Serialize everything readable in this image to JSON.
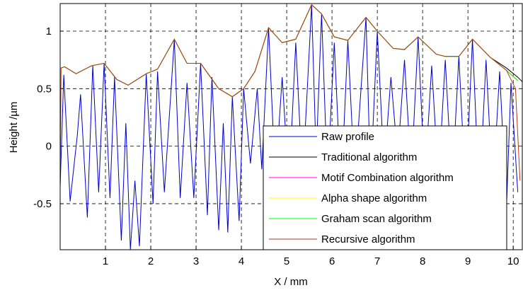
{
  "chart_data": {
    "type": "line",
    "xlabel": "X / mm",
    "ylabel": "Height /µm",
    "xlim": [
      0,
      10.2
    ],
    "ylim": [
      -0.9,
      1.24
    ],
    "xticks": [
      1,
      2,
      3,
      4,
      5,
      6,
      7,
      8,
      9,
      10
    ],
    "yticks": [
      -0.5,
      0,
      0.5,
      1
    ],
    "grid": true,
    "legend": "lower right",
    "series": [
      {
        "name": "Raw profile",
        "color": "#0000cc",
        "x": [
          0.0,
          0.08,
          0.22,
          0.38,
          0.45,
          0.6,
          0.72,
          0.85,
          0.97,
          1.1,
          1.2,
          1.35,
          1.45,
          1.55,
          1.65,
          1.75,
          1.9,
          2.05,
          2.15,
          2.3,
          2.52,
          2.65,
          2.8,
          2.95,
          3.1,
          3.25,
          3.35,
          3.5,
          3.6,
          3.7,
          3.8,
          3.95,
          4.05,
          4.2,
          4.35,
          4.45,
          4.6,
          4.75,
          4.9,
          5.05,
          5.2,
          5.35,
          5.55,
          5.65,
          5.77,
          5.9,
          6.05,
          6.2,
          6.35,
          6.5,
          6.75,
          6.85,
          7.0,
          7.15,
          7.3,
          7.45,
          7.6,
          7.75,
          7.9,
          8.05,
          8.2,
          8.35,
          8.5,
          8.65,
          8.8,
          8.95,
          9.1,
          9.25,
          9.4,
          9.55,
          9.7,
          9.85,
          9.95,
          10.1
        ],
        "values": [
          -0.35,
          0.62,
          -0.48,
          0.1,
          0.45,
          -0.62,
          0.7,
          -0.4,
          0.72,
          -0.45,
          0.6,
          -0.82,
          0.2,
          -0.9,
          -0.3,
          -0.87,
          0.63,
          -0.5,
          0.65,
          -0.4,
          0.93,
          -0.45,
          0.55,
          -0.45,
          0.72,
          -0.6,
          0.6,
          -0.73,
          0.2,
          -0.75,
          0.43,
          -0.65,
          0.5,
          -0.15,
          0.5,
          -0.2,
          1.03,
          -0.3,
          0.6,
          -0.35,
          0.9,
          -0.3,
          1.23,
          -0.1,
          1.15,
          -0.3,
          0.9,
          -0.4,
          0.92,
          -0.3,
          1.12,
          -0.3,
          1.0,
          -0.2,
          0.6,
          -0.1,
          0.75,
          -0.25,
          0.95,
          -0.3,
          0.7,
          -0.3,
          0.75,
          -0.35,
          0.78,
          -0.4,
          0.93,
          -0.45,
          0.75,
          -0.4,
          0.65,
          -0.55,
          0.55,
          -0.4
        ]
      },
      {
        "name": "Traditional algorithm",
        "color": "#000000",
        "x": [
          0.02,
          0.1,
          0.35,
          0.7,
          0.97,
          1.25,
          1.5,
          1.9,
          2.15,
          2.52,
          2.8,
          3.1,
          3.5,
          3.8,
          4.05,
          4.3,
          4.6,
          4.9,
          5.2,
          5.55,
          5.77,
          6.05,
          6.35,
          6.75,
          7.0,
          7.35,
          7.6,
          7.9,
          8.3,
          8.5,
          8.8,
          9.1,
          9.5,
          9.85,
          10.1,
          10.2
        ],
        "values": [
          0.68,
          0.69,
          0.63,
          0.7,
          0.72,
          0.58,
          0.53,
          0.63,
          0.67,
          0.93,
          0.72,
          0.72,
          0.5,
          0.43,
          0.5,
          0.65,
          1.03,
          0.9,
          0.93,
          1.23,
          1.15,
          0.95,
          0.92,
          1.12,
          1.0,
          0.85,
          0.84,
          0.95,
          0.8,
          0.78,
          0.78,
          0.93,
          0.77,
          0.68,
          0.6,
          0.56
        ]
      },
      {
        "name": "Motif Combination algorithm",
        "color": "#ff00ff",
        "x": [
          0.02,
          0.1,
          0.35,
          0.7,
          0.97,
          1.25,
          1.5,
          1.9,
          2.15,
          2.52,
          2.8,
          3.1,
          3.5,
          3.8,
          4.05,
          4.3,
          4.6,
          4.9,
          5.2,
          5.55,
          5.77,
          6.05,
          6.35,
          6.75,
          7.0,
          7.35,
          7.6,
          7.9,
          8.3,
          8.5,
          8.8,
          9.1,
          9.5,
          9.85,
          10.1
        ],
        "values": [
          0.68,
          0.69,
          0.63,
          0.7,
          0.72,
          0.58,
          0.53,
          0.63,
          0.67,
          0.93,
          0.72,
          0.72,
          0.5,
          0.43,
          0.5,
          0.65,
          1.03,
          0.9,
          0.93,
          1.23,
          1.15,
          0.95,
          0.92,
          1.12,
          1.0,
          0.85,
          0.84,
          0.95,
          0.8,
          0.78,
          0.78,
          0.93,
          0.77,
          0.66,
          0.57
        ]
      },
      {
        "name": "Alpha shape algorithm",
        "color": "#ffff00",
        "x": [
          0.02,
          0.1,
          0.35,
          0.7,
          0.97,
          1.25,
          1.5,
          1.9,
          2.15,
          2.52,
          2.8,
          3.1,
          3.5,
          3.8,
          4.05,
          4.3,
          4.6,
          4.9,
          5.2,
          5.55,
          5.77,
          6.05,
          6.35,
          6.75,
          7.0,
          7.35,
          7.6,
          7.9,
          8.3,
          8.5,
          8.8,
          9.1,
          9.5,
          9.85,
          10.1
        ],
        "values": [
          0.68,
          0.69,
          0.63,
          0.7,
          0.72,
          0.58,
          0.53,
          0.63,
          0.67,
          0.93,
          0.72,
          0.72,
          0.5,
          0.43,
          0.5,
          0.65,
          1.03,
          0.9,
          0.93,
          1.23,
          1.15,
          0.95,
          0.92,
          1.12,
          1.0,
          0.85,
          0.84,
          0.95,
          0.8,
          0.78,
          0.78,
          0.93,
          0.77,
          0.66,
          0.57
        ]
      },
      {
        "name": "Graham scan algorithm",
        "color": "#00ff00",
        "x": [
          0.02,
          0.1,
          0.35,
          0.7,
          0.97,
          1.25,
          1.5,
          1.9,
          2.15,
          2.52,
          2.8,
          3.1,
          3.5,
          3.8,
          4.05,
          4.3,
          4.6,
          4.9,
          5.2,
          5.55,
          5.77,
          6.05,
          6.35,
          6.75,
          7.0,
          7.35,
          7.6,
          7.9,
          8.3,
          8.5,
          8.8,
          9.1,
          9.5,
          9.85,
          10.1
        ],
        "values": [
          0.68,
          0.69,
          0.63,
          0.7,
          0.72,
          0.58,
          0.53,
          0.63,
          0.67,
          0.93,
          0.72,
          0.72,
          0.5,
          0.43,
          0.5,
          0.65,
          1.03,
          0.9,
          0.93,
          1.23,
          1.15,
          0.95,
          0.92,
          1.12,
          1.0,
          0.85,
          0.84,
          0.95,
          0.8,
          0.78,
          0.78,
          0.93,
          0.77,
          0.66,
          0.57
        ]
      },
      {
        "name": "Recursive algorithm",
        "color": "#b5371c",
        "x": [
          0.0,
          0.02,
          0.1,
          0.35,
          0.7,
          0.97,
          1.25,
          1.5,
          1.9,
          2.15,
          2.52,
          2.8,
          3.1,
          3.5,
          3.8,
          4.05,
          4.3,
          4.6,
          4.9,
          5.2,
          5.55,
          5.77,
          6.05,
          6.35,
          6.75,
          7.0,
          7.35,
          7.6,
          7.9,
          8.3,
          8.5,
          8.8,
          9.1,
          9.5,
          9.85,
          10.05,
          10.15
        ],
        "values": [
          -0.35,
          0.68,
          0.69,
          0.63,
          0.7,
          0.72,
          0.58,
          0.53,
          0.63,
          0.67,
          0.93,
          0.72,
          0.72,
          0.5,
          0.43,
          0.5,
          0.65,
          1.03,
          0.9,
          0.93,
          1.23,
          1.15,
          0.95,
          0.92,
          1.12,
          1.0,
          0.85,
          0.84,
          0.95,
          0.8,
          0.78,
          0.78,
          0.93,
          0.77,
          0.66,
          0.5,
          -0.3
        ]
      }
    ]
  }
}
